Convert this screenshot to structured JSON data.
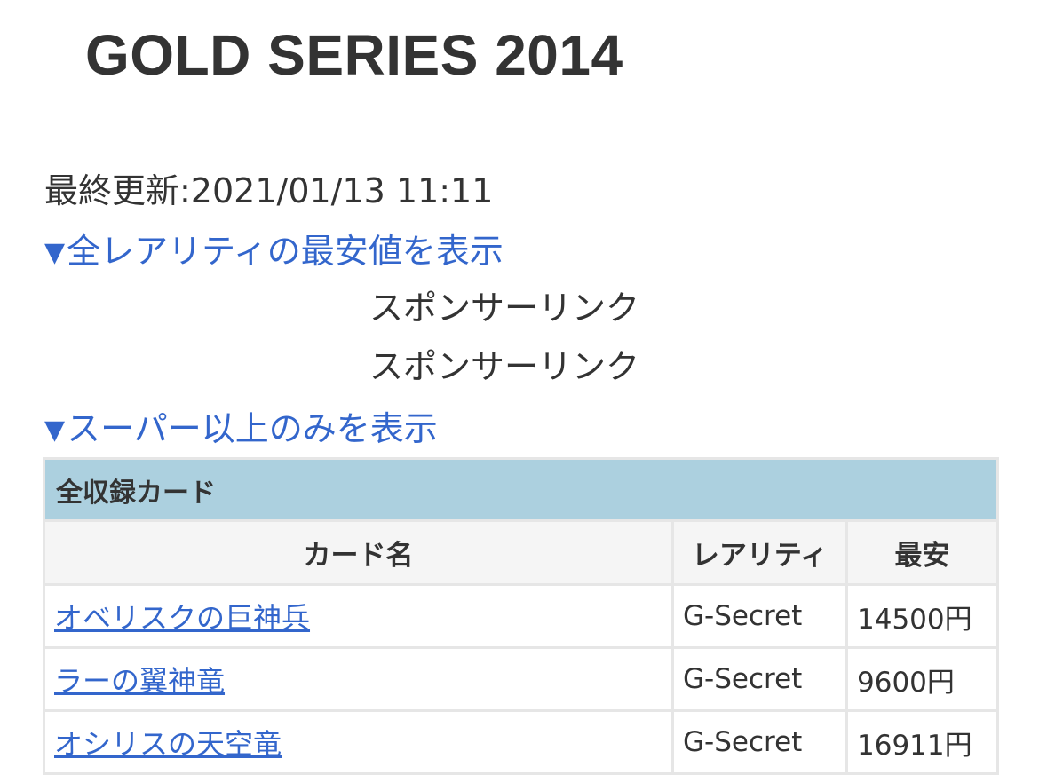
{
  "page": {
    "title": "GOLD SERIES 2014",
    "updated": "最終更新:2021/01/13 11:11",
    "toggle_all_rarities": "全レアリティの最安値を表示",
    "toggle_super_only": "スーパー以上のみを表示",
    "toggle_icon": "▼",
    "sponsor_label_1": "スポンサーリンク",
    "sponsor_label_2": "スポンサーリンク"
  },
  "table": {
    "caption": "全収録カード",
    "headers": {
      "name": "カード名",
      "rarity": "レアリティ",
      "lowest": "最安"
    },
    "rows": [
      {
        "name": "オベリスクの巨神兵",
        "rarity": "G-Secret",
        "price": "14500円"
      },
      {
        "name": "ラーの翼神竜",
        "rarity": "G-Secret",
        "price": "9600円"
      },
      {
        "name": "オシリスの天空竜",
        "rarity": "G-Secret",
        "price": "16911円"
      }
    ]
  },
  "colors": {
    "link": "#3366cc",
    "caption_bg": "#acd0df",
    "header_bg": "#f5f5f5",
    "text": "#333333",
    "border": "#e6e6e6"
  }
}
